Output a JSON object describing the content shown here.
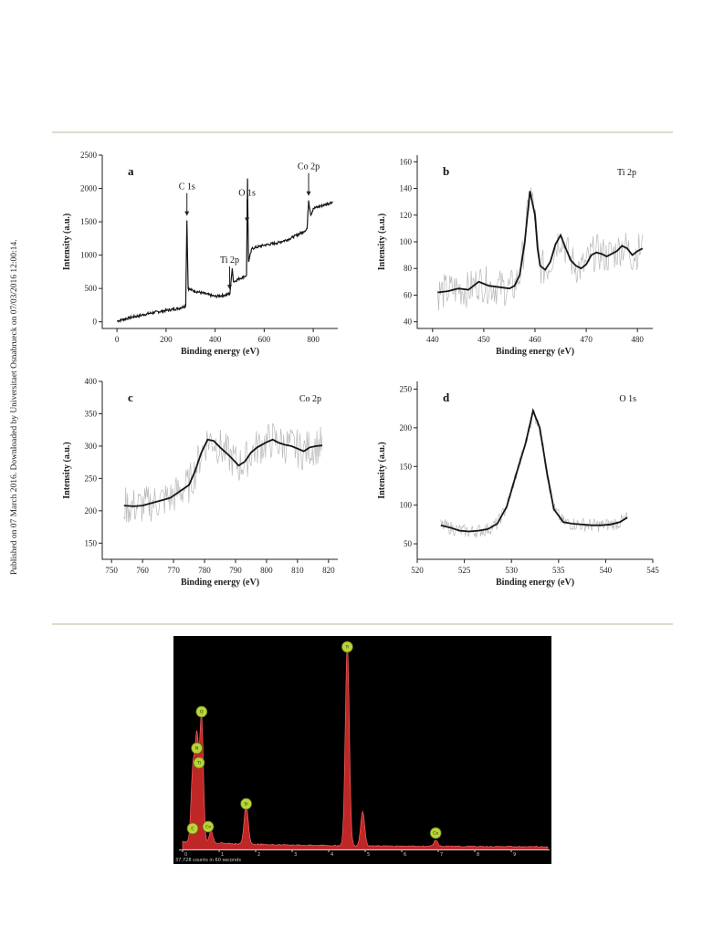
{
  "side_note": "Published on 07 March 2016. Downloaded by Universitaet Osnabrueck on 07/03/2016 12:00:14.",
  "chart_data": [
    {
      "id": "a",
      "type": "line",
      "panel_letter": "a",
      "panel_tag": "",
      "xlabel": "Binding energy (eV)",
      "ylabel": "Intensity (a.u.)",
      "xlim": [
        -60,
        900
      ],
      "ylim": [
        -100,
        2500
      ],
      "xticks": [
        0,
        200,
        400,
        600,
        800
      ],
      "yticks": [
        0,
        500,
        1000,
        1500,
        2000,
        2500
      ],
      "series": [
        {
          "values": [
            [
              0,
              10
            ],
            [
              50,
              60
            ],
            [
              100,
              100
            ],
            [
              150,
              140
            ],
            [
              200,
              170
            ],
            [
              250,
              200
            ],
            [
              280,
              240
            ],
            [
              285,
              1520
            ],
            [
              290,
              500
            ],
            [
              300,
              480
            ],
            [
              350,
              430
            ],
            [
              400,
              380
            ],
            [
              440,
              400
            ],
            [
              460,
              420
            ],
            [
              470,
              800
            ],
            [
              475,
              600
            ],
            [
              500,
              650
            ],
            [
              520,
              680
            ],
            [
              528,
              700
            ],
            [
              532,
              2150
            ],
            [
              536,
              900
            ],
            [
              550,
              1100
            ],
            [
              600,
              1150
            ],
            [
              650,
              1180
            ],
            [
              700,
              1240
            ],
            [
              760,
              1350
            ],
            [
              775,
              1400
            ],
            [
              781,
              1820
            ],
            [
              790,
              1600
            ],
            [
              800,
              1700
            ],
            [
              850,
              1760
            ],
            [
              880,
              1800
            ]
          ]
        }
      ],
      "annotations": [
        {
          "text": "C 1s",
          "x": 285
        },
        {
          "text": "Ti 2p",
          "x": 459
        },
        {
          "text": "O 1s",
          "x": 530
        },
        {
          "text": "Co 2p",
          "x": 781
        }
      ]
    },
    {
      "id": "b",
      "type": "line",
      "panel_letter": "b",
      "panel_tag": "Ti 2p",
      "xlabel": "Binding energy (eV)",
      "ylabel": "Intensity (a.u.)",
      "xlim": [
        437,
        483
      ],
      "ylim": [
        35,
        165
      ],
      "xticks": [
        440,
        450,
        460,
        470,
        480
      ],
      "yticks": [
        40,
        60,
        80,
        100,
        120,
        140,
        160
      ],
      "series": [
        {
          "name": "fit",
          "values": [
            [
              441,
              62
            ],
            [
              443,
              63
            ],
            [
              445,
              65
            ],
            [
              447,
              64
            ],
            [
              449,
              70
            ],
            [
              451,
              67
            ],
            [
              453,
              66
            ],
            [
              455,
              65
            ],
            [
              456,
              67
            ],
            [
              457,
              75
            ],
            [
              458,
              100
            ],
            [
              459,
              138
            ],
            [
              460,
              120
            ],
            [
              460.5,
              95
            ],
            [
              461,
              82
            ],
            [
              462,
              79
            ],
            [
              463,
              85
            ],
            [
              464,
              98
            ],
            [
              465,
              105
            ],
            [
              466,
              95
            ],
            [
              467,
              86
            ],
            [
              468,
              82
            ],
            [
              469,
              80
            ],
            [
              470,
              83
            ],
            [
              471,
              90
            ],
            [
              472,
              92
            ],
            [
              473,
              91
            ],
            [
              474,
              89
            ],
            [
              475,
              91
            ],
            [
              476,
              93
            ],
            [
              477,
              97
            ],
            [
              478,
              95
            ],
            [
              479,
              90
            ],
            [
              480,
              93
            ],
            [
              481,
              95
            ]
          ]
        }
      ]
    },
    {
      "id": "c",
      "type": "line",
      "panel_letter": "c",
      "panel_tag": "Co 2p",
      "xlabel": "Binding energy (eV)",
      "ylabel": "Intensity (a.u.)",
      "xlim": [
        747,
        823
      ],
      "ylim": [
        125,
        400
      ],
      "xticks": [
        750,
        760,
        770,
        780,
        790,
        800,
        810,
        820
      ],
      "yticks": [
        150,
        200,
        250,
        300,
        350,
        400
      ],
      "series": [
        {
          "name": "fit",
          "values": [
            [
              754,
              208
            ],
            [
              757,
              207
            ],
            [
              760,
              208
            ],
            [
              763,
              212
            ],
            [
              766,
              216
            ],
            [
              769,
              220
            ],
            [
              772,
              230
            ],
            [
              775,
              240
            ],
            [
              777,
              262
            ],
            [
              779,
              290
            ],
            [
              781,
              310
            ],
            [
              783,
              308
            ],
            [
              785,
              298
            ],
            [
              788,
              285
            ],
            [
              791,
              270
            ],
            [
              793,
              276
            ],
            [
              795,
              290
            ],
            [
              797,
              298
            ],
            [
              800,
              306
            ],
            [
              802,
              310
            ],
            [
              804,
              305
            ],
            [
              806,
              302
            ],
            [
              808,
              300
            ],
            [
              810,
              296
            ],
            [
              812,
              292
            ],
            [
              814,
              298
            ],
            [
              816,
              300
            ],
            [
              818,
              301
            ]
          ]
        }
      ]
    },
    {
      "id": "d",
      "type": "line",
      "panel_letter": "d",
      "panel_tag": "O 1s",
      "xlabel": "Binding energy (eV)",
      "ylabel": "Intensity (a.u.)",
      "xlim": [
        520,
        545
      ],
      "ylim": [
        30,
        260
      ],
      "xticks": [
        520,
        525,
        530,
        535,
        540,
        545
      ],
      "yticks": [
        50,
        100,
        150,
        200,
        250
      ],
      "series": [
        {
          "name": "fit",
          "values": [
            [
              522.5,
              74
            ],
            [
              523.5,
              71
            ],
            [
              524.5,
              67
            ],
            [
              525.5,
              66
            ],
            [
              526.5,
              67
            ],
            [
              527.5,
              69
            ],
            [
              528.5,
              76
            ],
            [
              529.5,
              98
            ],
            [
              530.5,
              140
            ],
            [
              531.5,
              180
            ],
            [
              532.3,
              222
            ],
            [
              533,
              200
            ],
            [
              533.8,
              140
            ],
            [
              534.5,
              95
            ],
            [
              535.5,
              78
            ],
            [
              536.5,
              76
            ],
            [
              537.5,
              75
            ],
            [
              538.5,
              74
            ],
            [
              539.5,
              74
            ],
            [
              540.5,
              75
            ],
            [
              541.5,
              78
            ],
            [
              542.3,
              84
            ]
          ]
        }
      ]
    },
    {
      "id": "eds",
      "type": "area",
      "xlim": [
        0,
        10
      ],
      "xticks": [
        0,
        1,
        2,
        3,
        4,
        5,
        6,
        7,
        8,
        9
      ],
      "xtick_labels": [
        "0",
        "1",
        "2",
        "3",
        "4",
        "5",
        "6",
        "7",
        "8",
        "9"
      ],
      "caption": "37,728 counts in 60 seconds",
      "peaks": [
        {
          "label": "C",
          "x": 0.28,
          "h": 0.35
        },
        {
          "label": "N",
          "x": 0.39,
          "h": 0.5
        },
        {
          "label": "O",
          "x": 0.52,
          "h": 0.62
        },
        {
          "label": "Co",
          "x": 0.78,
          "h": 0.06
        },
        {
          "label": "Si",
          "x": 1.74,
          "h": 0.2
        },
        {
          "label": "Ti",
          "x": 4.51,
          "h": 1.0
        },
        {
          "label": "Ti",
          "x": 4.93,
          "h": 0.17
        },
        {
          "label": "Co",
          "x": 6.93,
          "h": 0.03
        }
      ],
      "markers": [
        {
          "label": "O",
          "x": 0.52
        },
        {
          "label": "N",
          "x": 0.39
        },
        {
          "label": "Ti",
          "x": 0.45
        },
        {
          "label": "C",
          "x": 0.3
        },
        {
          "label": "Co",
          "x": 0.7
        },
        {
          "label": "Si",
          "x": 1.74
        },
        {
          "label": "Ti",
          "x": 4.51
        },
        {
          "label": "Co",
          "x": 6.93
        }
      ],
      "colors": {
        "spectrum": "#d42b2b",
        "marker": "#b8d43a",
        "background": "#000000"
      }
    }
  ]
}
